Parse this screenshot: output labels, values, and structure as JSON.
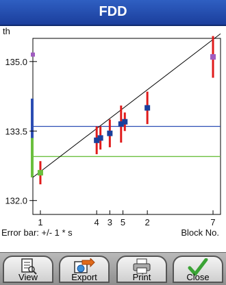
{
  "window": {
    "title": "FDD"
  },
  "toolbar": {
    "view": "View",
    "export": "Export",
    "print": "Print",
    "close": "Close"
  },
  "icons": {
    "view": "document-search-icon",
    "export": "export-icon",
    "print": "printer-icon",
    "close": "checkmark-icon"
  },
  "colors": {
    "title_bg": "#2550b3",
    "points": "#1a3f9c",
    "error_bars": "#e01b1b",
    "blue_line": "#2b4db3",
    "green_line": "#6abf3e",
    "fit_line": "#000000",
    "purple": "#a05cc0"
  },
  "chart_data": {
    "type": "scatter",
    "ylabel": "th",
    "xlabel": "Block No.",
    "note": "Error bar: +/- 1 * s",
    "yticks": [
      "132.0",
      "133.5",
      "135.0"
    ],
    "ylim": [
      131.7,
      135.5
    ],
    "xlim": [
      0.0,
      1.0
    ],
    "x_tick_labels": [
      {
        "label": "1",
        "pos": 0.04
      },
      {
        "label": "4",
        "pos": 0.34
      },
      {
        "label": "3",
        "pos": 0.41
      },
      {
        "label": "5",
        "pos": 0.48
      },
      {
        "label": "2",
        "pos": 0.61
      },
      {
        "label": "7",
        "pos": 0.96
      }
    ],
    "points": [
      {
        "x": 0.04,
        "y": 132.6,
        "err": 0.25,
        "color": "green"
      },
      {
        "x": 0.34,
        "y": 133.3,
        "err": 0.3
      },
      {
        "x": 0.36,
        "y": 133.35,
        "err": 0.25
      },
      {
        "x": 0.41,
        "y": 133.45,
        "err": 0.3
      },
      {
        "x": 0.47,
        "y": 133.65,
        "err": 0.4
      },
      {
        "x": 0.49,
        "y": 133.7,
        "err": 0.2
      },
      {
        "x": 0.61,
        "y": 134.0,
        "err": 0.35
      },
      {
        "x": 0.96,
        "y": 135.1,
        "err": 0.45,
        "color": "purple"
      }
    ],
    "fit_line": {
      "x0": 0.0,
      "y0": 132.5,
      "x1": 1.0,
      "y1": 135.6
    },
    "hlines": [
      {
        "y": 133.6,
        "color": "blue",
        "band": [
          133.0,
          134.2
        ]
      },
      {
        "y": 132.95,
        "color": "green",
        "band": [
          132.5,
          133.35
        ]
      }
    ],
    "left_marker": {
      "y": 135.15,
      "color": "purple"
    },
    "grid": false
  }
}
